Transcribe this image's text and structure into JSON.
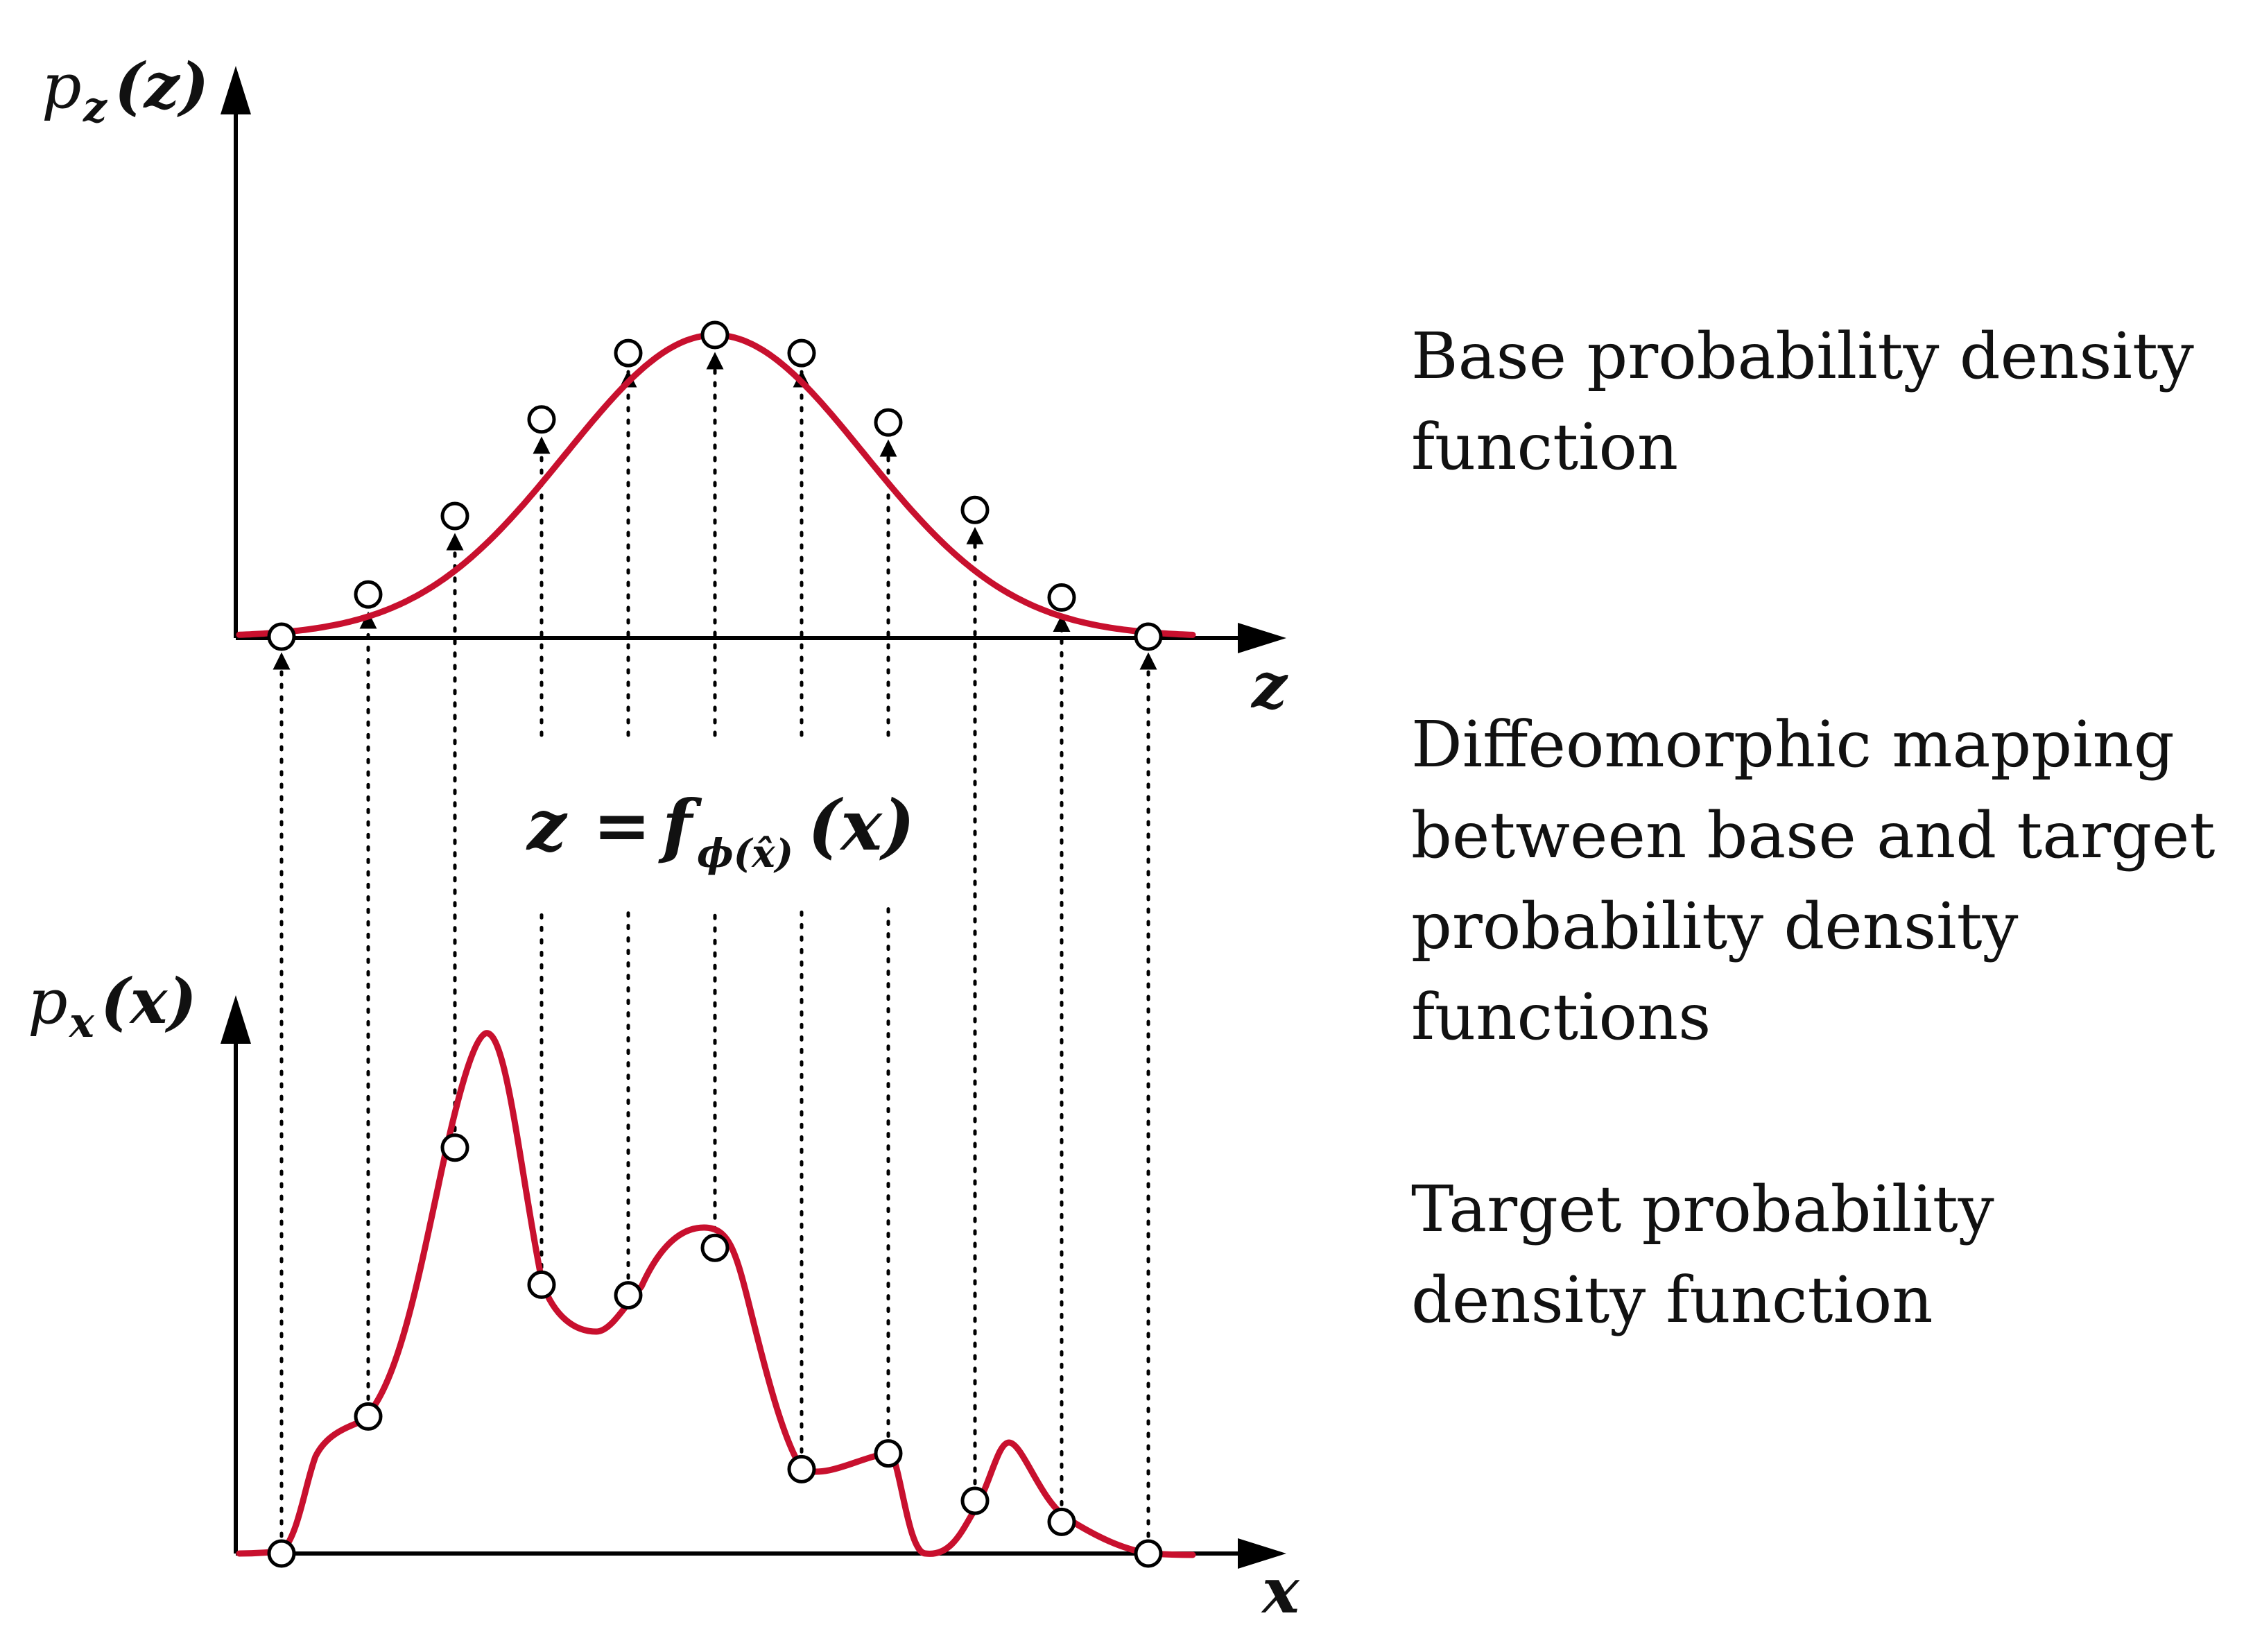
{
  "descriptions": {
    "base": "Base probability density function",
    "mapping": "Diffeomorphic mapping between base and target probability density functions",
    "target": "Target probability density function"
  },
  "labels": {
    "top_y": {
      "p": "p",
      "sub": "z",
      "arg": "(z)"
    },
    "top_x": "z",
    "bottom_y": {
      "p": "p",
      "sub": "x",
      "arg": "(x)"
    },
    "bottom_x": "x",
    "mapping": {
      "lhs": "z",
      "eq": "=",
      "f": "f",
      "sub": "ϕ(x̂)",
      "arg": "(x)"
    }
  },
  "colors": {
    "curve": "#c8102e",
    "axis": "#000000",
    "marker_fill": "#ffffff"
  },
  "markers": {
    "z_positions": [
      0,
      1,
      2,
      3,
      4,
      5,
      6,
      7,
      8,
      9,
      10
    ],
    "base_density": [
      0.0,
      0.14,
      0.4,
      0.72,
      0.94,
      1.0,
      0.94,
      0.71,
      0.42,
      0.13,
      0.0
    ],
    "target_density": [
      0.0,
      0.26,
      0.77,
      0.51,
      0.49,
      0.58,
      0.16,
      0.19,
      0.1,
      0.06,
      0.0
    ]
  }
}
